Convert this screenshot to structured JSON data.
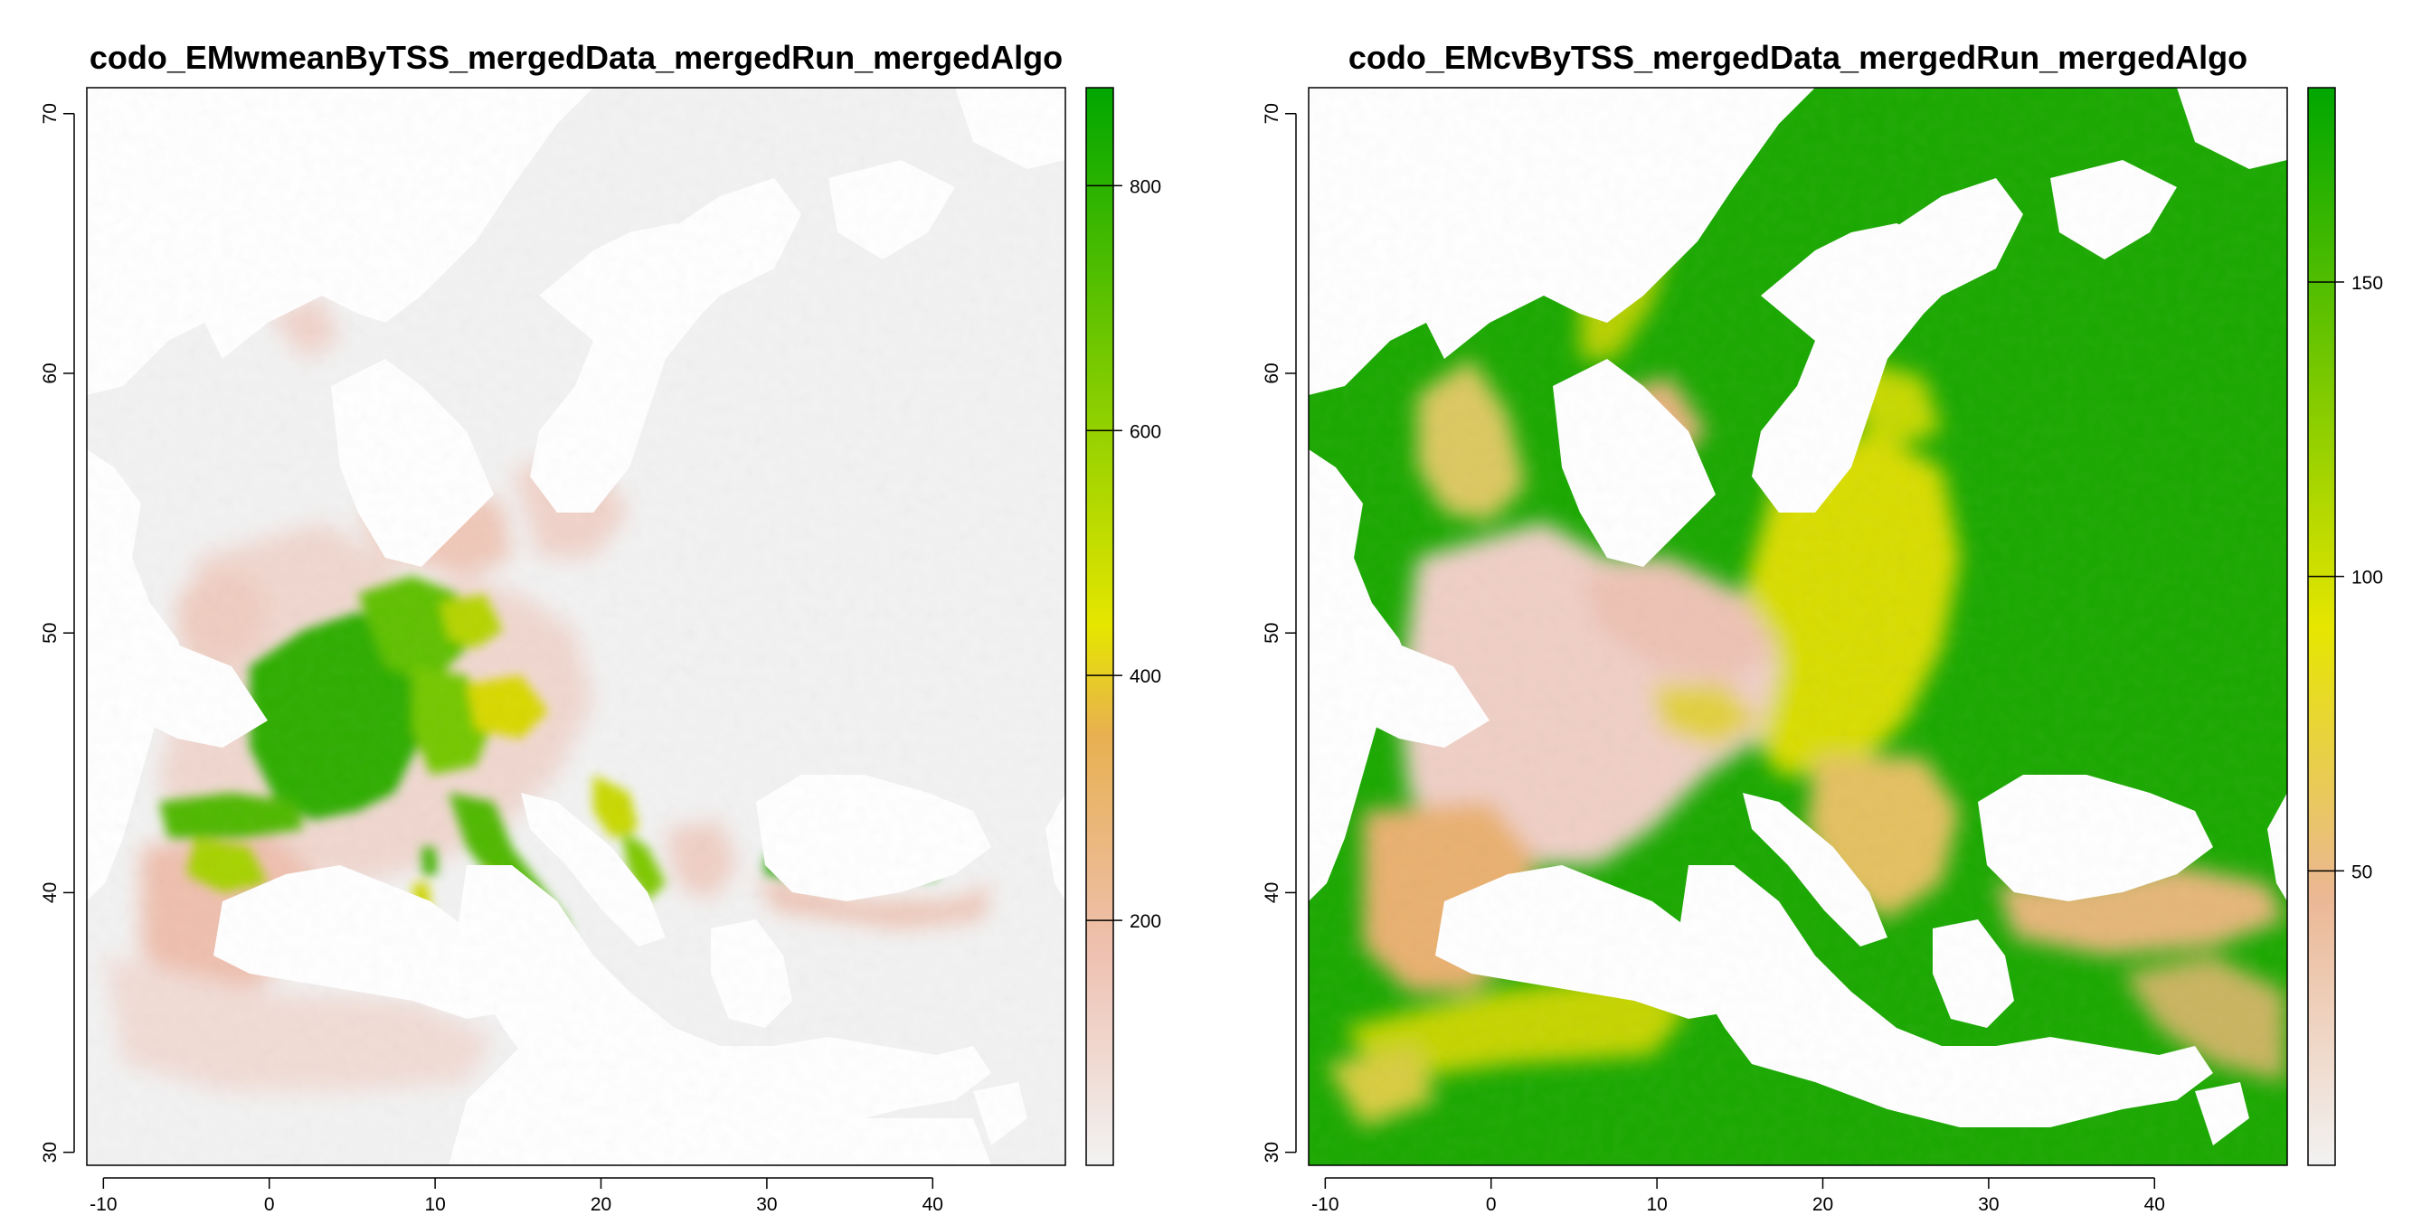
{
  "chart_data": [
    {
      "type": "heatmap",
      "title": "codo_EMwmeanByTSS_mergedData_mergedRun_mergedAlgo",
      "x_ticks": [
        -10,
        0,
        10,
        20,
        30,
        40
      ],
      "y_ticks": [
        30,
        40,
        50,
        60,
        70
      ],
      "xlim": [
        -11,
        48
      ],
      "ylim": [
        29.5,
        71
      ],
      "legend": {
        "ticks": [
          200,
          400,
          600,
          800
        ],
        "range": [
          0,
          880
        ],
        "placement": "right"
      },
      "colors": {
        "low": "#f2f2f2",
        "mid_low": "#ebb794",
        "mid": "#e6e600",
        "high": "#00a600"
      },
      "description": "Map of Europe with suitability values; high (green) over France, Italy, northern Spain, Alps, northern Turkey coast"
    },
    {
      "type": "heatmap",
      "title": "codo_EMcvByTSS_mergedData_mergedRun_mergedAlgo",
      "x_ticks": [
        -10,
        0,
        10,
        20,
        30,
        40
      ],
      "y_ticks": [
        30,
        40,
        50,
        60,
        70
      ],
      "xlim": [
        -11,
        48
      ],
      "ylim": [
        29.5,
        71
      ],
      "legend": {
        "ticks": [
          50,
          100,
          150
        ],
        "range": [
          0,
          183
        ],
        "placement": "right"
      },
      "colors": {
        "low": "#f2f2f2",
        "mid_low": "#ebb794",
        "mid": "#e6e600",
        "high": "#00a600"
      },
      "description": "Map of Europe with coefficient of variation; low over western/central Europe, high (green) over Russia, Scandinavia and North Africa"
    }
  ]
}
